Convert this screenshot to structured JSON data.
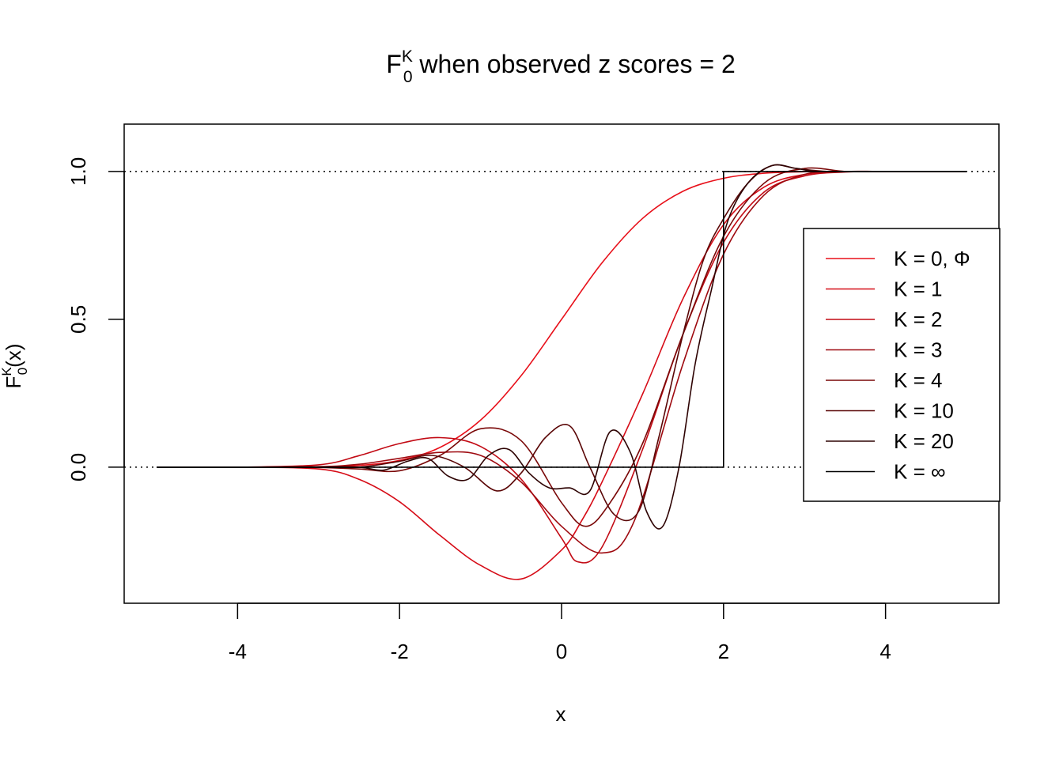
{
  "chart_data": {
    "type": "line",
    "title": {
      "main": "F",
      "superscript": "K",
      "subscript": "0",
      "rest": " when observed z scores = 2"
    },
    "xlabel": "x",
    "ylabel": {
      "main": "F",
      "superscript": "K",
      "subscript": "0",
      "rest": "(x)"
    },
    "xlim": [
      -5.4,
      5.4
    ],
    "ylim": [
      -0.46,
      1.16
    ],
    "x_ticks": [
      -4,
      -2,
      0,
      2,
      4
    ],
    "x_tick_labels": [
      "-4",
      "-2",
      "0",
      "2",
      "4"
    ],
    "y_ticks": [
      0,
      0.5,
      1
    ],
    "y_tick_labels": [
      "0.0",
      "0.5",
      "1.0"
    ],
    "reference_lines": [
      0,
      1
    ],
    "grid": false,
    "legend_position": "right",
    "legend": [
      "K = 0, Φ",
      "K = 1",
      "K = 2",
      "K = 3",
      "K = 4",
      "K = 10",
      "K = 20",
      "K = ∞"
    ],
    "colors": [
      "#e8101a",
      "#d60c17",
      "#c20a14",
      "#9e0a10",
      "#7a0808",
      "#5a0606",
      "#2e0303",
      "#000000"
    ],
    "series": [
      {
        "name": "K = 0, Φ",
        "x": [
          -5,
          -4,
          -3,
          -2.5,
          -2,
          -1.5,
          -1,
          -0.5,
          0,
          0.5,
          1,
          1.5,
          2,
          2.5,
          3,
          3.5,
          4,
          5
        ],
        "y": [
          0,
          0,
          0.001,
          0.006,
          0.023,
          0.067,
          0.159,
          0.309,
          0.5,
          0.691,
          0.841,
          0.933,
          0.977,
          0.994,
          0.999,
          1,
          1,
          1
        ]
      },
      {
        "name": "K = 1",
        "x": [
          -5,
          -4,
          -3,
          -2.5,
          -2,
          -1.5,
          -1,
          -0.5,
          0,
          0.25,
          0.5,
          1,
          1.5,
          2,
          2.5,
          3,
          3.5,
          4,
          5
        ],
        "y": [
          0,
          0,
          -0.006,
          -0.041,
          -0.117,
          -0.231,
          -0.332,
          -0.378,
          -0.28,
          -0.18,
          -0.05,
          0.247,
          0.57,
          0.82,
          0.947,
          0.99,
          0.999,
          1,
          1
        ]
      },
      {
        "name": "K = 2",
        "x": [
          -5,
          -4,
          -3,
          -2.5,
          -2,
          -1.5,
          -1,
          -0.5,
          0,
          0.2,
          0.5,
          1,
          1.5,
          2,
          2.5,
          3,
          3.5,
          4,
          5
        ],
        "y": [
          0,
          0,
          0.008,
          0.039,
          0.08,
          0.1,
          0.07,
          -0.04,
          -0.24,
          -0.32,
          -0.27,
          0.06,
          0.45,
          0.76,
          0.93,
          0.985,
          0.998,
          1,
          1
        ]
      },
      {
        "name": "K = 3",
        "x": [
          -5,
          -4,
          -3,
          -2.5,
          -2,
          -1.5,
          -1,
          -0.5,
          0,
          0.5,
          0.9,
          1.5,
          2,
          2.5,
          3,
          3.5,
          4,
          5
        ],
        "y": [
          0,
          0,
          0.002,
          0.01,
          0.03,
          0.05,
          0.04,
          -0.05,
          -0.2,
          -0.29,
          -0.18,
          0.35,
          0.72,
          0.92,
          0.99,
          1,
          1,
          1
        ]
      },
      {
        "name": "K = 4",
        "x": [
          -5,
          -4,
          -3,
          -2.5,
          -2,
          -1.5,
          -1,
          -0.5,
          0,
          0.3,
          0.6,
          1,
          1.5,
          2,
          2.5,
          3,
          3.5,
          4,
          5
        ],
        "y": [
          0,
          0,
          -0.001,
          -0.006,
          -0.012,
          0.04,
          0.13,
          0.09,
          -0.12,
          -0.2,
          -0.12,
          0.08,
          0.45,
          0.78,
          0.96,
          1.01,
          1,
          1,
          1
        ]
      },
      {
        "name": "K = 10",
        "x": [
          -5,
          -4,
          -3,
          -2.5,
          -2,
          -1.6,
          -1.2,
          -0.8,
          -0.5,
          -0.2,
          0.1,
          0.35,
          0.65,
          0.95,
          1.2,
          1.5,
          1.75,
          2,
          2.3,
          2.6,
          2.9,
          3.3,
          4,
          5
        ],
        "y": [
          0,
          0,
          0,
          0,
          0.02,
          0.04,
          0.0,
          -0.08,
          -0.02,
          0.1,
          0.14,
          0.0,
          -0.16,
          -0.15,
          0.1,
          0.45,
          0.7,
          0.84,
          0.96,
          1.02,
          1.01,
          1.0,
          1,
          1
        ]
      },
      {
        "name": "K = 20",
        "x": [
          -5,
          -3,
          -2.5,
          -2.2,
          -1.9,
          -1.65,
          -1.4,
          -1.15,
          -0.9,
          -0.65,
          -0.4,
          -0.15,
          0.1,
          0.35,
          0.6,
          0.85,
          1.05,
          1.25,
          1.45,
          1.65,
          1.85,
          2.05,
          2.3,
          2.6,
          2.9,
          3.2,
          4,
          5
        ],
        "y": [
          0,
          0,
          0,
          -0.01,
          0.02,
          0.03,
          -0.03,
          -0.04,
          0.04,
          0.06,
          -0.02,
          -0.07,
          -0.07,
          -0.08,
          0.12,
          0.05,
          -0.15,
          -0.2,
          0.0,
          0.35,
          0.6,
          0.83,
          0.96,
          1.02,
          1.01,
          1.0,
          1,
          1
        ]
      },
      {
        "name": "K = ∞",
        "x": [
          -5,
          2,
          2,
          5
        ],
        "y": [
          0,
          0,
          1,
          1
        ]
      }
    ]
  }
}
